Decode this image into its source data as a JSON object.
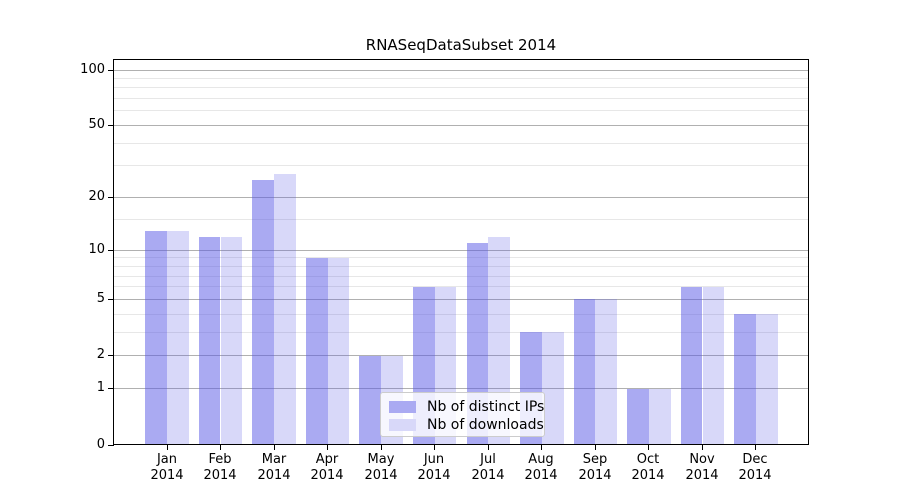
{
  "chart_data": {
    "type": "bar",
    "title": "RNASeqDataSubset 2014",
    "categories": [
      "Jan",
      "Feb",
      "Mar",
      "Apr",
      "May",
      "Jun",
      "Jul",
      "Aug",
      "Sep",
      "Oct",
      "Nov",
      "Dec"
    ],
    "year_label": "2014",
    "series": [
      {
        "name": "Nb of distinct IPs",
        "values": [
          13,
          12,
          25,
          9,
          2,
          6,
          11,
          3,
          5,
          1,
          6,
          4
        ],
        "fill": "rgba(85,85,229,0.50)",
        "legend_swatch": "#aaaaf2"
      },
      {
        "name": "Nb of downloads",
        "values": [
          13,
          12,
          27,
          9,
          2,
          6,
          12,
          3,
          5,
          1,
          6,
          4
        ],
        "fill": "rgba(85,85,229,0.23)",
        "legend_swatch": "#d8d8f9"
      }
    ],
    "y_axis": {
      "scale": "log1p",
      "major_ticks": [
        0,
        1,
        2,
        5,
        10,
        20,
        50,
        100
      ],
      "minor_ticks": [
        3,
        4,
        6,
        7,
        8,
        9,
        15,
        30,
        40,
        60,
        70,
        80,
        90
      ],
      "ylim": [
        0,
        119
      ]
    },
    "x_axis": {
      "tick_label_lines": 2
    },
    "legend": {
      "position": "lower center"
    },
    "grid": {
      "major_color": "#b0b0b0",
      "minor_color": "#e7e7e7"
    },
    "style": {
      "axis_color": "#000000",
      "background": "#ffffff"
    }
  }
}
